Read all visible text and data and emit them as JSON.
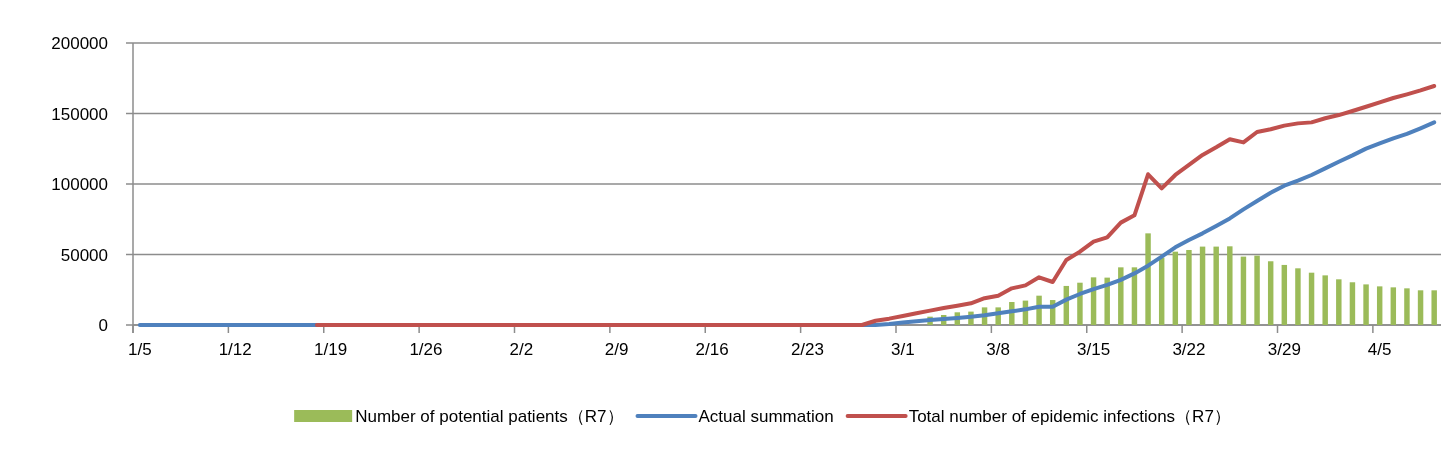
{
  "chart_data": {
    "type": "bar",
    "categories": [
      "1/5",
      null,
      null,
      null,
      null,
      null,
      null,
      "1/12",
      null,
      null,
      null,
      null,
      null,
      null,
      "1/19",
      null,
      null,
      null,
      null,
      null,
      null,
      "1/26",
      null,
      null,
      null,
      null,
      null,
      null,
      "2/2",
      null,
      null,
      null,
      null,
      null,
      null,
      "2/9",
      null,
      null,
      null,
      null,
      null,
      null,
      "2/16",
      null,
      null,
      null,
      null,
      null,
      null,
      "2/23",
      null,
      null,
      null,
      null,
      null,
      null,
      "3/1",
      null,
      null,
      null,
      null,
      null,
      null,
      "3/8",
      null,
      null,
      null,
      null,
      null,
      null,
      "3/15",
      null,
      null,
      null,
      null,
      null,
      null,
      "3/22",
      null,
      null,
      null,
      null,
      null,
      null,
      "3/29",
      null,
      null,
      null,
      null,
      null,
      null,
      "4/5",
      null,
      null,
      null,
      null
    ],
    "series": [
      {
        "name": "Number of potential patients（R7）",
        "color": "#9bbb59",
        "values": [
          null,
          null,
          null,
          null,
          null,
          null,
          null,
          null,
          null,
          null,
          null,
          null,
          null,
          null,
          null,
          null,
          null,
          null,
          null,
          null,
          null,
          null,
          null,
          null,
          null,
          null,
          null,
          null,
          null,
          null,
          null,
          null,
          null,
          null,
          null,
          null,
          null,
          null,
          null,
          null,
          null,
          null,
          null,
          null,
          null,
          null,
          null,
          null,
          null,
          null,
          null,
          null,
          null,
          null,
          null,
          null,
          null,
          null,
          5900,
          7100,
          9000,
          9500,
          12500,
          12500,
          16300,
          17300,
          20800,
          17700,
          27700,
          30000,
          33800,
          33600,
          40900,
          40900,
          65000,
          47800,
          52000,
          53200,
          55600,
          55600,
          55800,
          48500,
          49200,
          45200,
          42600,
          40200,
          37100,
          35200,
          32400,
          30300,
          28800,
          27400,
          26700,
          26000,
          24600,
          24600
        ]
      },
      {
        "name": "Actual summation",
        "type": "line",
        "color": "#4f81bd",
        "values": [
          0,
          0,
          0,
          0,
          0,
          0,
          0,
          0,
          0,
          0,
          0,
          0,
          0,
          0,
          0,
          0,
          0,
          0,
          0,
          0,
          0,
          0,
          0,
          0,
          0,
          0,
          0,
          0,
          0,
          0,
          0,
          0,
          0,
          0,
          0,
          0,
          0,
          0,
          0,
          0,
          0,
          0,
          0,
          0,
          0,
          0,
          0,
          0,
          0,
          0,
          0,
          0,
          0,
          0,
          0,
          700,
          1700,
          2600,
          3500,
          4300,
          5000,
          5900,
          6900,
          8300,
          9700,
          11100,
          13000,
          13000,
          18000,
          22000,
          25500,
          28500,
          32000,
          36600,
          42100,
          48500,
          55100,
          60300,
          65000,
          70200,
          75600,
          82000,
          87900,
          93800,
          98800,
          102400,
          106400,
          111100,
          115800,
          120300,
          125100,
          128800,
          132400,
          135500,
          139500,
          143700
        ]
      },
      {
        "name": "Total number of epidemic infections（R7）",
        "type": "line",
        "color": "#c0504d",
        "values": [
          null,
          null,
          null,
          null,
          null,
          null,
          null,
          null,
          null,
          null,
          null,
          null,
          null,
          0,
          0,
          0,
          0,
          0,
          0,
          0,
          0,
          0,
          0,
          0,
          0,
          0,
          0,
          0,
          0,
          0,
          0,
          0,
          0,
          0,
          0,
          0,
          0,
          0,
          0,
          0,
          0,
          0,
          0,
          0,
          0,
          0,
          0,
          0,
          0,
          0,
          0,
          0,
          0,
          0,
          3000,
          4500,
          6400,
          8300,
          10200,
          12000,
          13700,
          15400,
          19000,
          20800,
          26000,
          28100,
          33800,
          30500,
          46100,
          52000,
          59100,
          62200,
          72600,
          77800,
          106900,
          96900,
          106400,
          113500,
          120600,
          126000,
          131700,
          129500,
          136900,
          138800,
          141400,
          143000,
          143700,
          146600,
          148900,
          151800,
          154800,
          157900,
          161000,
          163600,
          166400,
          169500
        ]
      }
    ],
    "ylim": [
      0,
      200000
    ],
    "yticks": [
      0,
      50000,
      100000,
      150000,
      200000
    ],
    "grid": "y",
    "legend": "bottom"
  }
}
